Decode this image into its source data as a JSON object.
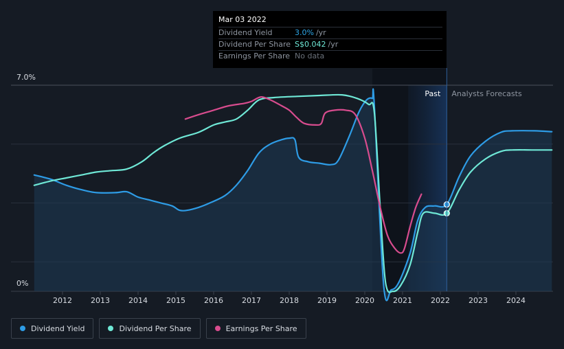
{
  "tooltip": {
    "date": "Mar 03 2022",
    "rows": [
      {
        "label": "Dividend Yield",
        "value": "3.0%",
        "unit": "/yr"
      },
      {
        "label": "Dividend Per Share",
        "value": "S$0.042",
        "unit": "/yr"
      },
      {
        "label": "Earnings Per Share",
        "value": "No data",
        "unit": ""
      }
    ]
  },
  "legend": [
    {
      "label": "Dividend Yield",
      "color": "#2e9ce6"
    },
    {
      "label": "Dividend Per Share",
      "color": "#6fe8d6"
    },
    {
      "label": "Earnings Per Share",
      "color": "#d84c8e"
    }
  ],
  "chart_data": {
    "type": "line",
    "title": "",
    "y_axis": {
      "top_label": "7.0%",
      "bottom_label": "0%",
      "range": [
        0,
        7.0
      ]
    },
    "x_axis": {
      "tick_labels": [
        "2012",
        "2013",
        "2014",
        "2015",
        "2016",
        "2017",
        "2018",
        "2019",
        "2020",
        "2021",
        "2022",
        "2023",
        "2024"
      ],
      "range": [
        2011.25,
        2024.95
      ]
    },
    "regions": {
      "past_label": "Past",
      "forecast_label": "Analysts Forecasts",
      "forecast_start": 2022.17
    },
    "highlight_x": 2022.17,
    "series": [
      {
        "name": "Dividend Yield",
        "color": "#2e9ce6",
        "filled": true,
        "points": [
          [
            2011.25,
            3.95
          ],
          [
            2011.7,
            3.8
          ],
          [
            2012.1,
            3.6
          ],
          [
            2012.5,
            3.45
          ],
          [
            2012.9,
            3.35
          ],
          [
            2013.4,
            3.35
          ],
          [
            2013.7,
            3.38
          ],
          [
            2014.0,
            3.2
          ],
          [
            2014.3,
            3.1
          ],
          [
            2014.6,
            3.0
          ],
          [
            2014.9,
            2.9
          ],
          [
            2015.1,
            2.75
          ],
          [
            2015.3,
            2.75
          ],
          [
            2015.6,
            2.85
          ],
          [
            2015.9,
            3.0
          ],
          [
            2016.3,
            3.25
          ],
          [
            2016.6,
            3.6
          ],
          [
            2016.9,
            4.1
          ],
          [
            2017.2,
            4.7
          ],
          [
            2017.5,
            5.0
          ],
          [
            2017.8,
            5.15
          ],
          [
            2018.0,
            5.2
          ],
          [
            2018.15,
            5.15
          ],
          [
            2018.25,
            4.55
          ],
          [
            2018.5,
            4.4
          ],
          [
            2018.8,
            4.35
          ],
          [
            2019.1,
            4.3
          ],
          [
            2019.3,
            4.45
          ],
          [
            2019.6,
            5.3
          ],
          [
            2019.85,
            6.1
          ],
          [
            2020.05,
            6.5
          ],
          [
            2020.2,
            6.55
          ],
          [
            2020.25,
            6.35
          ],
          [
            2020.5,
            0.2
          ],
          [
            2020.7,
            0.05
          ],
          [
            2020.9,
            0.3
          ],
          [
            2021.2,
            1.3
          ],
          [
            2021.4,
            2.4
          ],
          [
            2021.6,
            2.85
          ],
          [
            2021.85,
            2.9
          ],
          [
            2022.17,
            2.95
          ],
          [
            2022.5,
            3.9
          ],
          [
            2022.8,
            4.6
          ],
          [
            2023.2,
            5.1
          ],
          [
            2023.6,
            5.4
          ],
          [
            2023.9,
            5.45
          ],
          [
            2024.5,
            5.45
          ],
          [
            2024.95,
            5.42
          ]
        ]
      },
      {
        "name": "Dividend Per Share",
        "color": "#6fe8d6",
        "filled": false,
        "points": [
          [
            2011.25,
            3.6
          ],
          [
            2011.7,
            3.75
          ],
          [
            2012.1,
            3.85
          ],
          [
            2012.5,
            3.95
          ],
          [
            2012.9,
            4.05
          ],
          [
            2013.3,
            4.1
          ],
          [
            2013.7,
            4.15
          ],
          [
            2014.1,
            4.4
          ],
          [
            2014.4,
            4.7
          ],
          [
            2014.7,
            4.95
          ],
          [
            2015.1,
            5.2
          ],
          [
            2015.6,
            5.4
          ],
          [
            2016.0,
            5.65
          ],
          [
            2016.3,
            5.75
          ],
          [
            2016.6,
            5.85
          ],
          [
            2016.9,
            6.15
          ],
          [
            2017.2,
            6.5
          ],
          [
            2017.6,
            6.58
          ],
          [
            2018.2,
            6.62
          ],
          [
            2018.8,
            6.65
          ],
          [
            2019.4,
            6.67
          ],
          [
            2019.8,
            6.55
          ],
          [
            2020.1,
            6.35
          ],
          [
            2020.25,
            6.1
          ],
          [
            2020.4,
            3.0
          ],
          [
            2020.55,
            0.3
          ],
          [
            2020.75,
            0.0
          ],
          [
            2020.95,
            0.2
          ],
          [
            2021.2,
            0.9
          ],
          [
            2021.4,
            2.0
          ],
          [
            2021.55,
            2.65
          ],
          [
            2021.85,
            2.65
          ],
          [
            2022.17,
            2.65
          ],
          [
            2022.5,
            3.45
          ],
          [
            2022.8,
            4.05
          ],
          [
            2023.2,
            4.5
          ],
          [
            2023.6,
            4.75
          ],
          [
            2023.9,
            4.8
          ],
          [
            2024.5,
            4.8
          ],
          [
            2024.95,
            4.8
          ]
        ]
      },
      {
        "name": "Earnings Per Share",
        "color": "#d84c8e",
        "filled": false,
        "points": [
          [
            2015.25,
            5.85
          ],
          [
            2015.6,
            6.0
          ],
          [
            2016.0,
            6.15
          ],
          [
            2016.4,
            6.3
          ],
          [
            2016.8,
            6.38
          ],
          [
            2017.0,
            6.45
          ],
          [
            2017.25,
            6.6
          ],
          [
            2017.5,
            6.5
          ],
          [
            2017.8,
            6.3
          ],
          [
            2018.0,
            6.15
          ],
          [
            2018.2,
            5.9
          ],
          [
            2018.4,
            5.7
          ],
          [
            2018.7,
            5.65
          ],
          [
            2018.85,
            5.7
          ],
          [
            2018.95,
            6.05
          ],
          [
            2019.2,
            6.15
          ],
          [
            2019.5,
            6.15
          ],
          [
            2019.75,
            6.0
          ],
          [
            2020.0,
            5.2
          ],
          [
            2020.2,
            4.1
          ],
          [
            2020.4,
            2.9
          ],
          [
            2020.6,
            1.9
          ],
          [
            2020.8,
            1.45
          ],
          [
            2020.95,
            1.3
          ],
          [
            2021.05,
            1.45
          ],
          [
            2021.2,
            2.2
          ],
          [
            2021.35,
            2.85
          ],
          [
            2021.5,
            3.3
          ]
        ]
      }
    ],
    "markers": [
      {
        "series": "Dividend Yield",
        "x": 2022.17,
        "y": 2.95
      },
      {
        "series": "Dividend Per Share",
        "x": 2022.17,
        "y": 2.65
      }
    ]
  }
}
